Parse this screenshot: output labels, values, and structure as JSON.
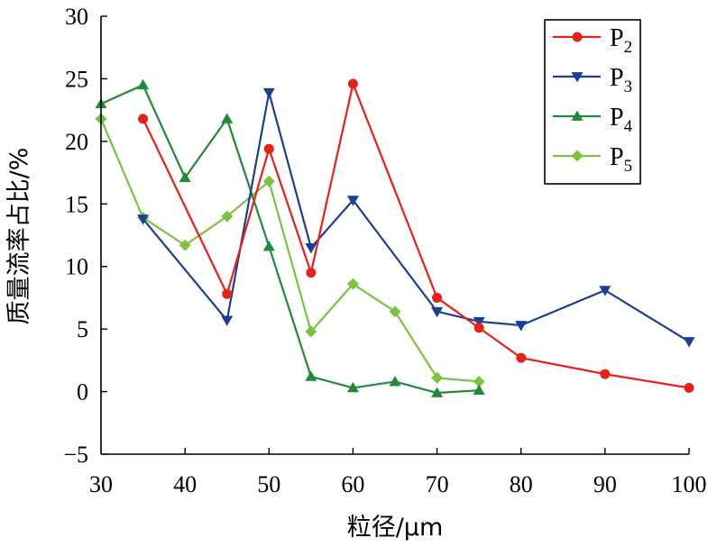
{
  "chart_data": {
    "type": "line",
    "xlabel": "粒径/μm",
    "ylabel": "质量流率占比/%",
    "xlim": [
      30,
      100
    ],
    "ylim": [
      -5,
      30
    ],
    "xticks": [
      30,
      40,
      50,
      60,
      70,
      80,
      90,
      100
    ],
    "yticks": [
      -5,
      0,
      5,
      10,
      15,
      20,
      25,
      30
    ],
    "grid": false,
    "legend": "top-right",
    "series": [
      {
        "name": "P2",
        "label_main": "P",
        "label_sub": "2",
        "color": "#e8201a",
        "marker": "circle",
        "x": [
          35,
          45,
          50,
          55,
          60,
          70,
          75,
          80,
          90,
          100
        ],
        "y": [
          21.8,
          7.8,
          19.4,
          9.5,
          24.6,
          7.5,
          5.1,
          2.7,
          1.4,
          0.3
        ]
      },
      {
        "name": "P3",
        "label_main": "P",
        "label_sub": "3",
        "color": "#1b3f94",
        "marker": "triangle-down",
        "x": [
          35,
          45,
          50,
          55,
          60,
          70,
          75,
          80,
          90,
          100
        ],
        "y": [
          13.8,
          5.7,
          23.9,
          11.5,
          15.3,
          6.4,
          5.6,
          5.3,
          8.1,
          4.0
        ]
      },
      {
        "name": "P4",
        "label_main": "P",
        "label_sub": "4",
        "color": "#218a3a",
        "marker": "triangle-up",
        "x": [
          30,
          35,
          40,
          45,
          50,
          55,
          60,
          65,
          70,
          75
        ],
        "y": [
          23.0,
          24.5,
          17.1,
          21.8,
          11.6,
          1.2,
          0.3,
          0.8,
          -0.1,
          0.1
        ]
      },
      {
        "name": "P5",
        "label_main": "P",
        "label_sub": "5",
        "color": "#7cc242",
        "marker": "diamond",
        "x": [
          30,
          35,
          40,
          45,
          50,
          55,
          60,
          65,
          70,
          75
        ],
        "y": [
          21.8,
          13.9,
          11.7,
          14.0,
          16.8,
          4.8,
          8.6,
          6.4,
          1.1,
          0.8
        ]
      }
    ]
  }
}
